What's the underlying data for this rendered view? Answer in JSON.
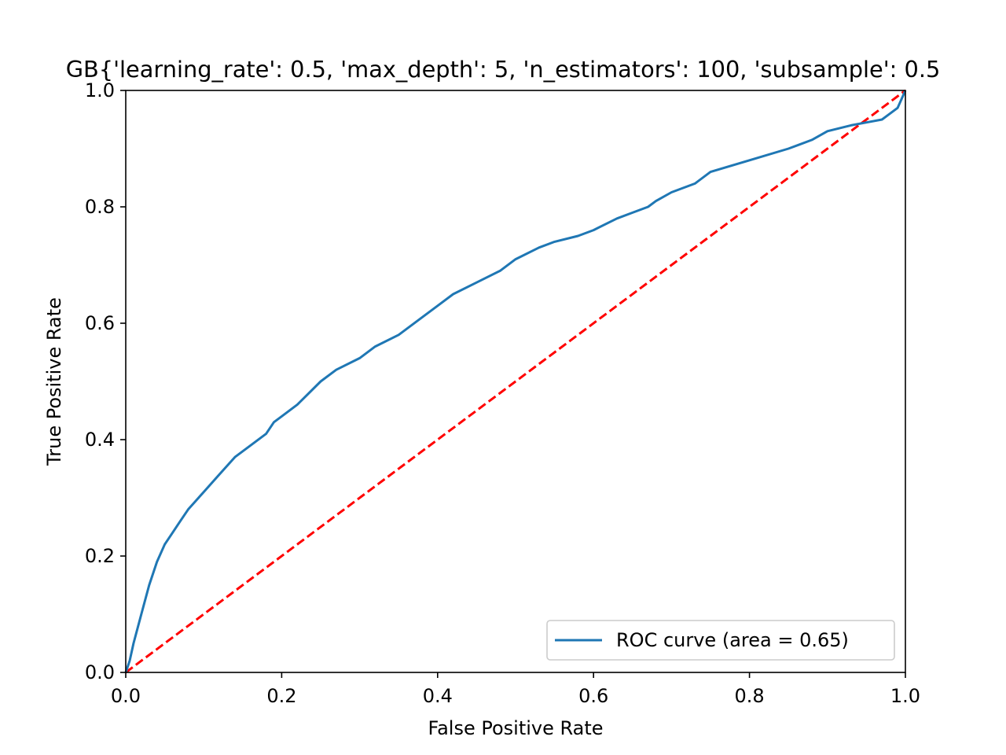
{
  "chart_data": {
    "type": "line",
    "title": "GB{'learning_rate': 0.5, 'max_depth': 5, 'n_estimators': 100, 'subsample': 0.5",
    "xlabel": "False Positive Rate",
    "ylabel": "True Positive Rate",
    "xlim": [
      0.0,
      1.0
    ],
    "ylim": [
      0.0,
      1.0
    ],
    "xticks": [
      "0.0",
      "0.2",
      "0.4",
      "0.6",
      "0.8",
      "1.0"
    ],
    "yticks": [
      "0.0",
      "0.2",
      "0.4",
      "0.6",
      "0.8",
      "1.0"
    ],
    "grid": false,
    "legend_position": "lower right",
    "series": [
      {
        "name": "ROC curve (area = 0.65)",
        "color": "#1f77b4",
        "style": "solid",
        "x": [
          0.0,
          0.005,
          0.01,
          0.02,
          0.03,
          0.04,
          0.05,
          0.06,
          0.07,
          0.08,
          0.1,
          0.12,
          0.14,
          0.16,
          0.18,
          0.19,
          0.2,
          0.22,
          0.25,
          0.27,
          0.3,
          0.32,
          0.35,
          0.38,
          0.4,
          0.42,
          0.45,
          0.48,
          0.5,
          0.53,
          0.55,
          0.58,
          0.6,
          0.63,
          0.65,
          0.67,
          0.68,
          0.7,
          0.73,
          0.75,
          0.8,
          0.85,
          0.88,
          0.9,
          0.93,
          0.95,
          0.97,
          0.98,
          0.99,
          1.0
        ],
        "y": [
          0.0,
          0.02,
          0.05,
          0.1,
          0.15,
          0.19,
          0.22,
          0.24,
          0.26,
          0.28,
          0.31,
          0.34,
          0.37,
          0.39,
          0.41,
          0.43,
          0.44,
          0.46,
          0.5,
          0.52,
          0.54,
          0.56,
          0.58,
          0.61,
          0.63,
          0.65,
          0.67,
          0.69,
          0.71,
          0.73,
          0.74,
          0.75,
          0.76,
          0.78,
          0.79,
          0.8,
          0.81,
          0.825,
          0.84,
          0.86,
          0.88,
          0.9,
          0.915,
          0.93,
          0.94,
          0.945,
          0.95,
          0.96,
          0.97,
          1.0
        ]
      },
      {
        "name": "",
        "color": "#ff0000",
        "style": "dashed",
        "x": [
          0.0,
          1.0
        ],
        "y": [
          0.0,
          1.0
        ]
      }
    ]
  }
}
